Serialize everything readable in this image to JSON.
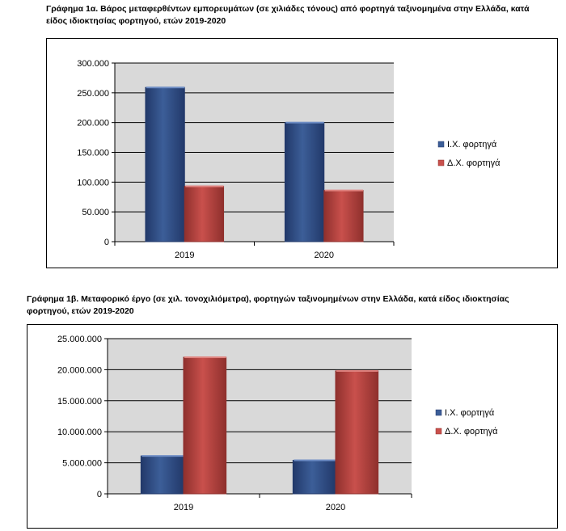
{
  "captions": {
    "chart1_line1": "Γράφημα 1α. Βάρος μεταφερθέντων εμπορευμάτων (σε χιλιάδες τόνους) από φορτηγά ταξινομημένα στην Ελλάδα, κατά",
    "chart1_line2": "είδος ιδιοκτησίας φορτηγού, ετών 2019-2020",
    "chart2_line1": "Γράφημα 1β. Μεταφορικό έργο (σε χιλ. τονοχιλιόμετρα), φορτηγών ταξινομημένων στην Ελλάδα, κατά είδος ιδιοκτησίας",
    "chart2_line2": "φορτηγού, ετών 2019-2020"
  },
  "colors": {
    "plot_bg": "#d9d9d9",
    "series1": "#3c5e98",
    "series2": "#c9504c"
  },
  "chart_data": [
    {
      "type": "bar",
      "categories": [
        "2019",
        "2020"
      ],
      "series": [
        {
          "name": "Ι.Χ. φορτηγά",
          "values": [
            259000,
            200000
          ]
        },
        {
          "name": "Δ.Χ. φορτηγά",
          "values": [
            93000,
            86000
          ]
        }
      ],
      "ylim": [
        0,
        300000
      ],
      "yticks": [
        "0",
        "50.000",
        "100.000",
        "150.000",
        "200.000",
        "250.000",
        "300.000"
      ],
      "ytick_values": [
        0,
        50000,
        100000,
        150000,
        200000,
        250000,
        300000
      ],
      "grid": true,
      "legend": "right"
    },
    {
      "type": "bar",
      "categories": [
        "2019",
        "2020"
      ],
      "series": [
        {
          "name": "Ι.Χ. φορτηγά",
          "values": [
            6100000,
            5400000
          ]
        },
        {
          "name": "Δ.Χ. φορτηγά",
          "values": [
            22000000,
            19800000
          ]
        }
      ],
      "ylim": [
        0,
        25000000
      ],
      "yticks": [
        "0",
        "5.000.000",
        "10.000.000",
        "15.000.000",
        "20.000.000",
        "25.000.000"
      ],
      "ytick_values": [
        0,
        5000000,
        10000000,
        15000000,
        20000000,
        25000000
      ],
      "grid": true,
      "legend": "right"
    }
  ]
}
